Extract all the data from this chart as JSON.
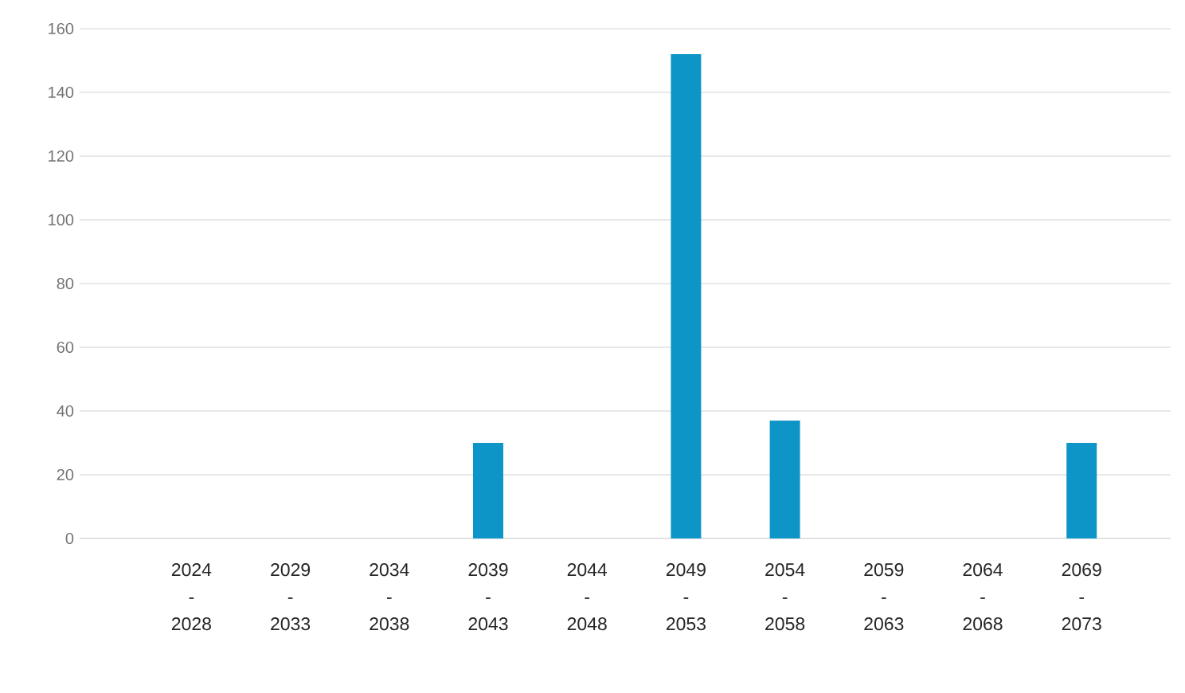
{
  "chart_data": {
    "type": "bar",
    "categories": [
      "2024 - 2028",
      "2029 - 2033",
      "2034 - 2038",
      "2039 - 2043",
      "2044 - 2048",
      "2049 - 2053",
      "2054 - 2058",
      "2059 - 2063",
      "2064 - 2068",
      "2069 - 2073"
    ],
    "values": [
      0,
      0,
      0,
      30,
      0,
      152,
      37,
      0,
      0,
      30
    ],
    "color": "#0e95c8",
    "ylim": [
      0,
      160
    ],
    "yticks": [
      0,
      20,
      40,
      60,
      80,
      100,
      120,
      140,
      160
    ],
    "grid": "y"
  }
}
